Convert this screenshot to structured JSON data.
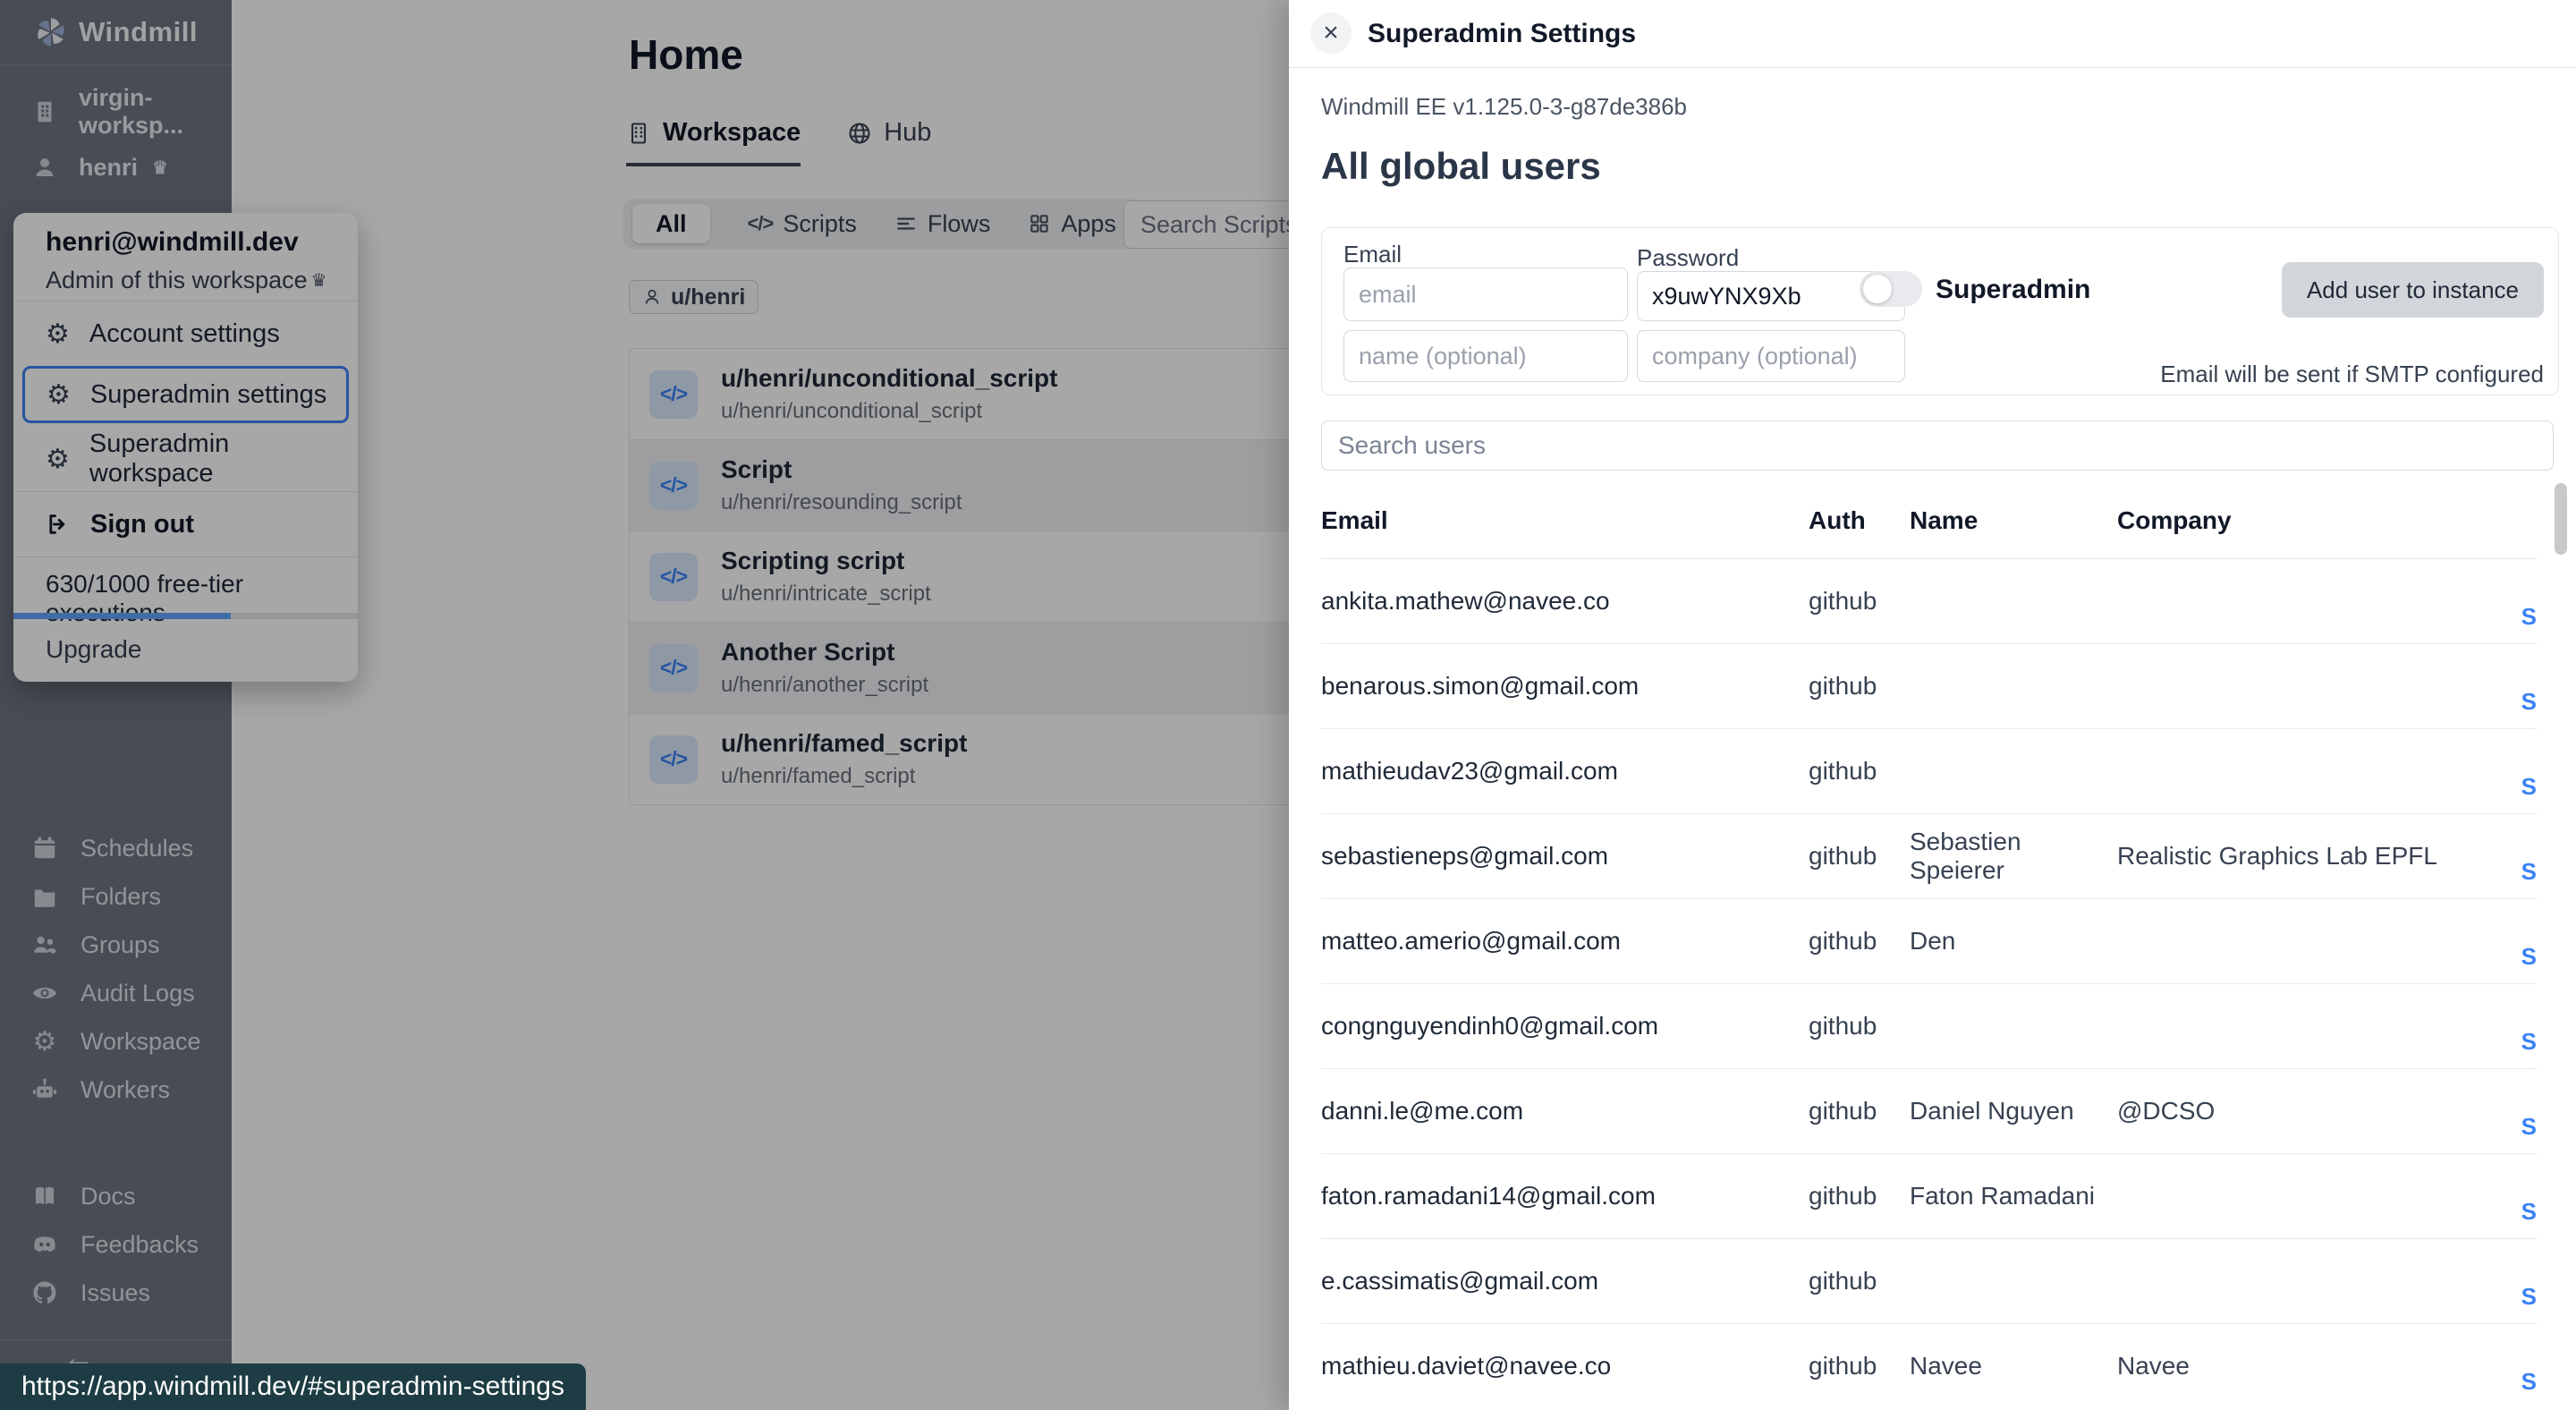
{
  "colors": {
    "accent_blue": "#3b82f6",
    "icon_blue": "#3b82f6",
    "tooltip_bg": "#1d3c43",
    "sidebar_bg": "#6e7581"
  },
  "browser": {
    "status_url": "https://app.windmill.dev/#superadmin-settings"
  },
  "sidebar": {
    "logo_text": "Windmill",
    "workspace_name": "virgin-worksp...",
    "user_name": "henri",
    "nav_items": [
      "Schedules",
      "Folders",
      "Groups",
      "Audit Logs",
      "Workspace",
      "Workers"
    ],
    "footer_items": [
      "Docs",
      "Feedbacks",
      "Issues"
    ]
  },
  "user_menu": {
    "email": "henri@windmill.dev",
    "role": "Admin of this workspace",
    "items": [
      "Account settings",
      "Superadmin settings",
      "Superadmin workspace"
    ],
    "sign_out": "Sign out",
    "executions": "630/1000 free-tier executions",
    "executions_pct": 63,
    "upgrade": "Upgrade"
  },
  "main": {
    "title": "Home",
    "tabs": [
      "Workspace",
      "Hub"
    ],
    "filters": [
      "All",
      "Scripts",
      "Flows",
      "Apps"
    ],
    "search_placeholder": "Search Scripts,",
    "owner_chip": "u/henri",
    "scripts": [
      {
        "title": "u/henri/unconditional_script",
        "path": "u/henri/unconditional_script"
      },
      {
        "title": "Script",
        "path": "u/henri/resounding_script"
      },
      {
        "title": "Scripting script",
        "path": "u/henri/intricate_script"
      },
      {
        "title": "Another Script",
        "path": "u/henri/another_script"
      },
      {
        "title": "u/henri/famed_script",
        "path": "u/henri/famed_script"
      }
    ]
  },
  "drawer": {
    "title": "Superadmin Settings",
    "version": "Windmill EE v1.125.0-3-g87de386b",
    "heading": "All global users",
    "form": {
      "email_label": "Email",
      "email_placeholder": "email",
      "password_label": "Password",
      "password_value": "x9uwYNX9Xb",
      "name_placeholder": "name (optional)",
      "company_placeholder": "company (optional)",
      "superadmin_label": "Superadmin",
      "add_button": "Add user to instance",
      "smtp_note": "Email will be sent if SMTP configured"
    },
    "search_placeholder": "Search users",
    "table": {
      "headers": [
        "Email",
        "Auth",
        "Name",
        "Company"
      ],
      "row_action": "S",
      "rows": [
        {
          "email": "ankita.mathew@navee.co",
          "auth": "github",
          "name": "",
          "company": ""
        },
        {
          "email": "benarous.simon@gmail.com",
          "auth": "github",
          "name": "",
          "company": ""
        },
        {
          "email": "mathieudav23@gmail.com",
          "auth": "github",
          "name": "",
          "company": ""
        },
        {
          "email": "sebastieneps@gmail.com",
          "auth": "github",
          "name": "Sebastien Speierer",
          "company": "Realistic Graphics Lab EPFL"
        },
        {
          "email": "matteo.amerio@gmail.com",
          "auth": "github",
          "name": "Den",
          "company": ""
        },
        {
          "email": "congnguyendinh0@gmail.com",
          "auth": "github",
          "name": "",
          "company": ""
        },
        {
          "email": "danni.le@me.com",
          "auth": "github",
          "name": "Daniel Nguyen",
          "company": "@DCSO"
        },
        {
          "email": "faton.ramadani14@gmail.com",
          "auth": "github",
          "name": "Faton Ramadani",
          "company": ""
        },
        {
          "email": "e.cassimatis@gmail.com",
          "auth": "github",
          "name": "",
          "company": ""
        },
        {
          "email": "mathieu.daviet@navee.co",
          "auth": "github",
          "name": "Navee",
          "company": "Navee"
        }
      ]
    }
  }
}
